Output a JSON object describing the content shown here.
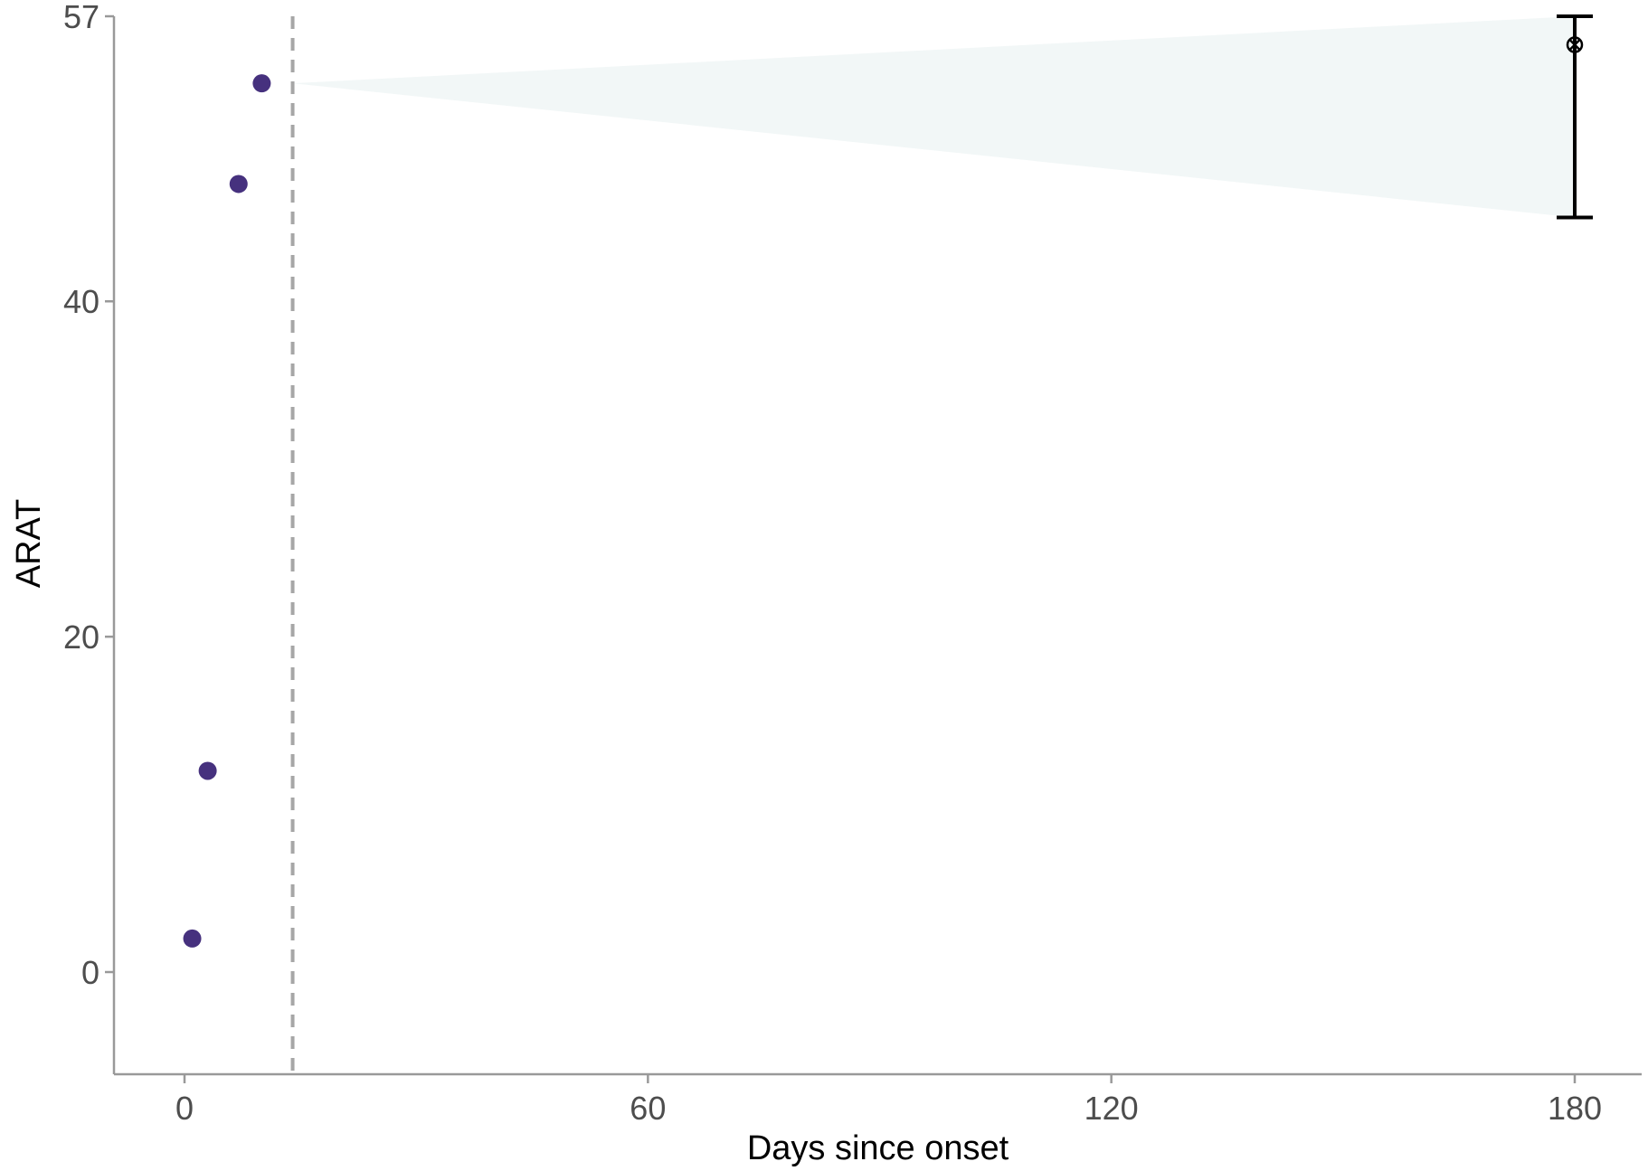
{
  "chart_data": {
    "type": "scatter",
    "xlabel": "Days since onset",
    "ylabel": "ARAT",
    "x_ticks": [
      0,
      60,
      120,
      180
    ],
    "y_ticks": [
      0,
      20,
      40,
      57
    ],
    "xlim": [
      -9,
      189
    ],
    "ylim": [
      -6,
      57
    ],
    "points": [
      {
        "x": 1,
        "y": 2
      },
      {
        "x": 3,
        "y": 12
      },
      {
        "x": 7,
        "y": 47
      },
      {
        "x": 10,
        "y": 53
      }
    ],
    "reference_line_x": 14,
    "prediction_band": {
      "x_start": 14,
      "y_start": 53,
      "x_end": 180,
      "y_upper": 57,
      "y_lower": 45
    },
    "predicted_outcome": {
      "x": 180,
      "y": 55.3,
      "lower": 45,
      "upper": 57
    },
    "colors": {
      "point": "#46317e",
      "band": "#f2f7f7",
      "reference_line": "#a6a6a6",
      "axis": "#999999",
      "error_bar": "#000000"
    }
  }
}
